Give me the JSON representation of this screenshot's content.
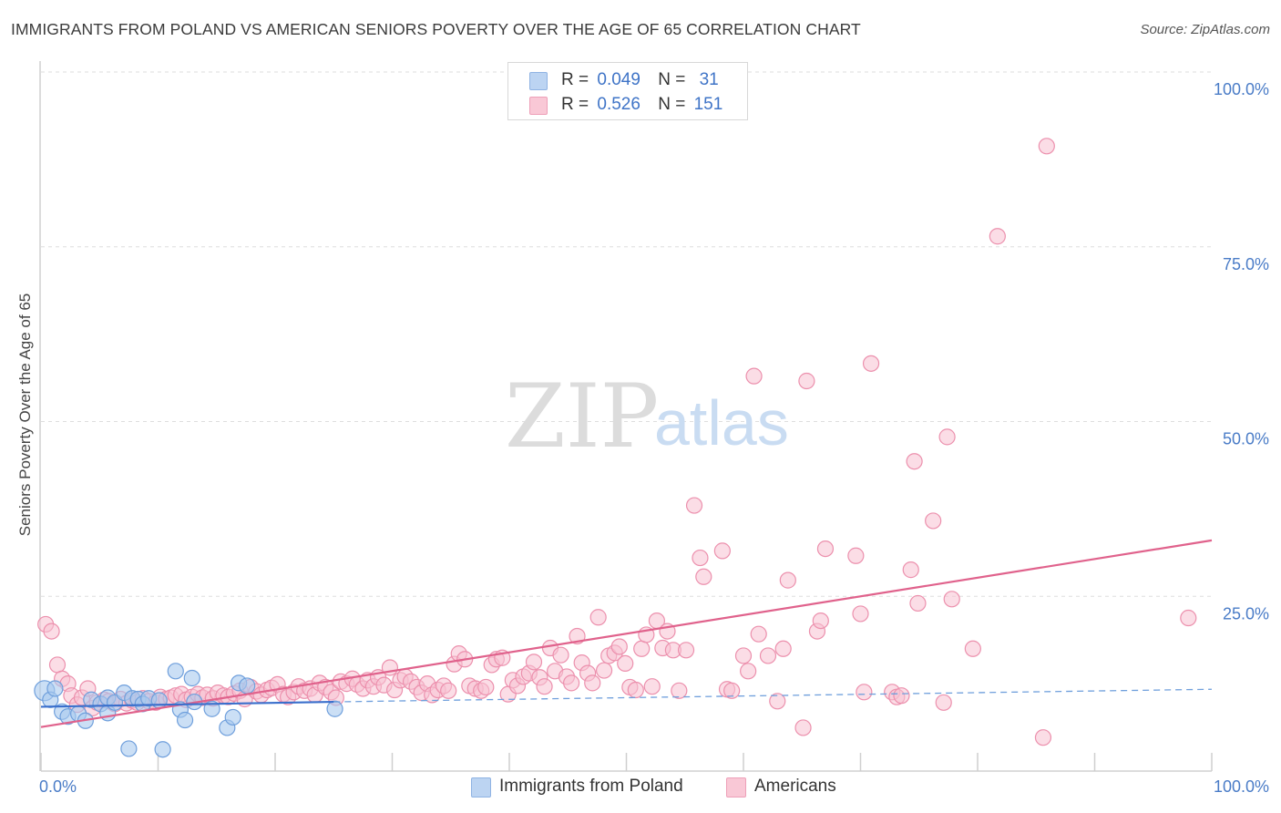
{
  "header": {
    "title": "IMMIGRANTS FROM POLAND VS AMERICAN SENIORS POVERTY OVER THE AGE OF 65 CORRELATION CHART",
    "source": "Source: ZipAtlas.com"
  },
  "watermark": {
    "zip": "ZIP",
    "atlas": "atlas"
  },
  "legend": {
    "rows": [
      {
        "r_label": "R =",
        "r_value": "0.049",
        "n_label": "N =",
        "n_value": "31",
        "color": "#a9c9ef"
      },
      {
        "r_label": "R =",
        "r_value": "0.526",
        "n_label": "N =",
        "n_value": "151",
        "color": "#f7b9cb"
      }
    ]
  },
  "bottom_legend": [
    {
      "label": "Immigrants from Poland",
      "color": "#a9c9ef"
    },
    {
      "label": "Americans",
      "color": "#f7b9cb"
    }
  ],
  "colors": {
    "blue_fill": "#a9c9ef",
    "blue_stroke": "#6f9fdc",
    "blue_line": "#3a6fcc",
    "pink_fill": "#f7c1d1",
    "pink_stroke": "#ec90ad",
    "pink_line": "#e0628c",
    "grid": "#dedede",
    "axis_tick": "#4a7cc7"
  },
  "chart_data": {
    "type": "scatter",
    "title": "IMMIGRANTS FROM POLAND VS AMERICAN SENIORS POVERTY OVER THE AGE OF 65 CORRELATION CHART",
    "xlabel": "",
    "ylabel": "Seniors Poverty Over the Age of 65",
    "xlim": [
      0,
      100
    ],
    "ylim": [
      0,
      100
    ],
    "x_tick_labels": [
      "0.0%",
      "100.0%"
    ],
    "y_tick_values": [
      25,
      50,
      75,
      100
    ],
    "y_tick_labels": [
      "25.0%",
      "50.0%",
      "75.0%",
      "100.0%"
    ],
    "grid": true,
    "legend_position": "top-center",
    "series": [
      {
        "name": "Immigrants from Poland",
        "r": 0.049,
        "n": 31,
        "trend": {
          "x": [
            0,
            25
          ],
          "y": [
            9.2,
            9.9
          ]
        },
        "trend_dashed": {
          "x": [
            25,
            100
          ],
          "y": [
            9.9,
            11.7
          ]
        },
        "points": [
          [
            0.3,
            11.5
          ],
          [
            0.8,
            10.2
          ],
          [
            1.2,
            11.8
          ],
          [
            1.8,
            8.5
          ],
          [
            2.3,
            7.8
          ],
          [
            3.2,
            8.2
          ],
          [
            3.8,
            7.2
          ],
          [
            4.3,
            10.2
          ],
          [
            5.1,
            9.6
          ],
          [
            5.7,
            10.5
          ],
          [
            5.7,
            8.3
          ],
          [
            6.3,
            9.8
          ],
          [
            7.1,
            11.2
          ],
          [
            7.5,
            3.2
          ],
          [
            7.8,
            10.4
          ],
          [
            8.3,
            10.3
          ],
          [
            8.7,
            9.6
          ],
          [
            9.2,
            10.4
          ],
          [
            10.1,
            10.1
          ],
          [
            10.4,
            3.1
          ],
          [
            11.5,
            14.3
          ],
          [
            11.9,
            8.8
          ],
          [
            12.3,
            7.3
          ],
          [
            12.9,
            13.3
          ],
          [
            13.1,
            9.9
          ],
          [
            14.6,
            8.9
          ],
          [
            15.9,
            6.2
          ],
          [
            16.4,
            7.7
          ],
          [
            16.9,
            12.6
          ],
          [
            17.6,
            12.2
          ],
          [
            25.1,
            8.9
          ]
        ]
      },
      {
        "name": "Americans",
        "r": 0.526,
        "n": 151,
        "trend": {
          "x": [
            0,
            100
          ],
          "y": [
            6.3,
            33.0
          ]
        },
        "points": [
          [
            0.4,
            21.0
          ],
          [
            0.9,
            20.0
          ],
          [
            1.4,
            15.2
          ],
          [
            1.8,
            13.2
          ],
          [
            2.3,
            12.5
          ],
          [
            2.6,
            10.8
          ],
          [
            3.1,
            9.5
          ],
          [
            3.5,
            10.5
          ],
          [
            4.0,
            11.8
          ],
          [
            4.4,
            9.0
          ],
          [
            4.8,
            9.8
          ],
          [
            5.4,
            10.2
          ],
          [
            5.8,
            10.0
          ],
          [
            6.3,
            9.6
          ],
          [
            6.8,
            10.3
          ],
          [
            7.3,
            9.7
          ],
          [
            7.8,
            10.1
          ],
          [
            8.2,
            9.8
          ],
          [
            8.7,
            10.4
          ],
          [
            9.2,
            10.0
          ],
          [
            9.8,
            9.8
          ],
          [
            10.2,
            10.6
          ],
          [
            10.7,
            10.3
          ],
          [
            11.1,
            10.5
          ],
          [
            11.5,
            10.8
          ],
          [
            12.0,
            11.0
          ],
          [
            12.4,
            10.2
          ],
          [
            12.9,
            10.6
          ],
          [
            13.4,
            11.0
          ],
          [
            13.8,
            10.5
          ],
          [
            14.2,
            10.9
          ],
          [
            14.7,
            10.4
          ],
          [
            15.1,
            11.2
          ],
          [
            15.6,
            10.8
          ],
          [
            16.0,
            10.6
          ],
          [
            16.5,
            11.1
          ],
          [
            17.0,
            11.5
          ],
          [
            17.4,
            10.3
          ],
          [
            17.9,
            12.0
          ],
          [
            18.4,
            11.4
          ],
          [
            18.8,
            10.9
          ],
          [
            19.3,
            11.6
          ],
          [
            19.7,
            11.9
          ],
          [
            20.2,
            12.4
          ],
          [
            20.7,
            11.0
          ],
          [
            21.1,
            10.6
          ],
          [
            21.6,
            11.3
          ],
          [
            22.0,
            12.1
          ],
          [
            22.5,
            11.5
          ],
          [
            23.0,
            11.8
          ],
          [
            23.4,
            10.9
          ],
          [
            23.8,
            12.6
          ],
          [
            24.3,
            12.0
          ],
          [
            24.8,
            11.3
          ],
          [
            25.2,
            10.5
          ],
          [
            25.6,
            12.8
          ],
          [
            26.1,
            12.5
          ],
          [
            26.6,
            13.2
          ],
          [
            27.0,
            12.4
          ],
          [
            27.5,
            11.8
          ],
          [
            27.9,
            13.0
          ],
          [
            28.4,
            12.1
          ],
          [
            28.8,
            13.4
          ],
          [
            29.3,
            12.3
          ],
          [
            29.8,
            14.8
          ],
          [
            30.2,
            11.6
          ],
          [
            30.7,
            13.0
          ],
          [
            31.1,
            13.5
          ],
          [
            31.6,
            12.8
          ],
          [
            32.1,
            12.0
          ],
          [
            32.5,
            11.2
          ],
          [
            33.0,
            12.5
          ],
          [
            33.4,
            10.9
          ],
          [
            33.9,
            11.6
          ],
          [
            34.4,
            12.2
          ],
          [
            34.8,
            11.5
          ],
          [
            35.3,
            15.3
          ],
          [
            35.7,
            16.8
          ],
          [
            36.2,
            16.0
          ],
          [
            36.6,
            12.2
          ],
          [
            37.1,
            11.8
          ],
          [
            37.6,
            11.5
          ],
          [
            38.0,
            12.0
          ],
          [
            38.5,
            15.2
          ],
          [
            38.9,
            16.0
          ],
          [
            39.4,
            16.2
          ],
          [
            39.9,
            11.0
          ],
          [
            40.3,
            13.0
          ],
          [
            40.7,
            12.2
          ],
          [
            41.2,
            13.5
          ],
          [
            41.7,
            14.0
          ],
          [
            42.1,
            15.6
          ],
          [
            42.6,
            13.4
          ],
          [
            43.0,
            12.1
          ],
          [
            43.5,
            17.6
          ],
          [
            43.9,
            14.3
          ],
          [
            44.4,
            16.6
          ],
          [
            44.9,
            13.5
          ],
          [
            45.3,
            12.6
          ],
          [
            45.8,
            19.3
          ],
          [
            46.2,
            15.5
          ],
          [
            46.7,
            14.0
          ],
          [
            47.1,
            12.6
          ],
          [
            47.6,
            22.0
          ],
          [
            48.1,
            14.4
          ],
          [
            48.5,
            16.5
          ],
          [
            49.0,
            16.9
          ],
          [
            49.4,
            17.8
          ],
          [
            49.9,
            15.4
          ],
          [
            50.3,
            12.0
          ],
          [
            50.8,
            11.6
          ],
          [
            51.3,
            17.5
          ],
          [
            51.7,
            19.5
          ],
          [
            52.2,
            12.1
          ],
          [
            52.6,
            21.5
          ],
          [
            53.1,
            17.6
          ],
          [
            53.5,
            20.0
          ],
          [
            54.0,
            17.3
          ],
          [
            54.5,
            11.5
          ],
          [
            55.1,
            17.3
          ],
          [
            55.8,
            38.0
          ],
          [
            56.3,
            30.5
          ],
          [
            56.6,
            27.8
          ],
          [
            58.2,
            31.5
          ],
          [
            58.6,
            11.7
          ],
          [
            59.0,
            11.5
          ],
          [
            60.0,
            16.5
          ],
          [
            60.4,
            14.3
          ],
          [
            60.9,
            56.5
          ],
          [
            61.3,
            19.6
          ],
          [
            62.1,
            16.5
          ],
          [
            62.9,
            10.0
          ],
          [
            63.4,
            17.5
          ],
          [
            63.8,
            27.3
          ],
          [
            65.1,
            6.2
          ],
          [
            65.4,
            55.8
          ],
          [
            66.3,
            20.0
          ],
          [
            66.6,
            21.5
          ],
          [
            67.0,
            31.8
          ],
          [
            69.6,
            30.8
          ],
          [
            70.0,
            22.5
          ],
          [
            70.3,
            11.3
          ],
          [
            70.9,
            58.3
          ],
          [
            72.7,
            11.3
          ],
          [
            73.1,
            10.6
          ],
          [
            73.5,
            10.8
          ],
          [
            74.3,
            28.8
          ],
          [
            74.6,
            44.3
          ],
          [
            74.9,
            24.0
          ],
          [
            76.2,
            35.8
          ],
          [
            77.1,
            9.8
          ],
          [
            77.4,
            47.8
          ],
          [
            77.8,
            24.6
          ],
          [
            79.6,
            17.5
          ],
          [
            81.7,
            76.5
          ],
          [
            85.6,
            4.8
          ],
          [
            85.9,
            89.4
          ],
          [
            98.0,
            21.9
          ]
        ]
      }
    ]
  }
}
